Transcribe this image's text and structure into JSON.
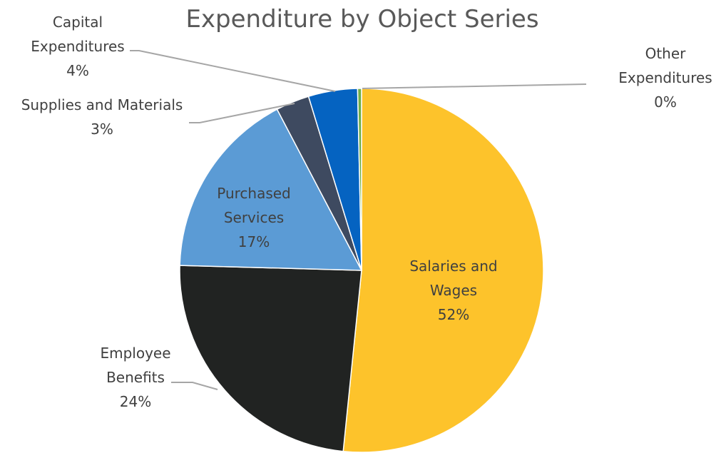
{
  "chart_data": {
    "type": "pie",
    "title": "Expenditure by Object Series",
    "slices": [
      {
        "label_lines": [
          "Salaries and",
          "Wages"
        ],
        "value_text": "52%",
        "value": 52.0,
        "color": "#FDC32B",
        "label_inside": true
      },
      {
        "label_lines": [
          "Employee",
          "Benefits"
        ],
        "value_text": "24%",
        "value": 24.0,
        "color": "#212322",
        "label_inside": false
      },
      {
        "label_lines": [
          "Purchased",
          "Services"
        ],
        "value_text": "17%",
        "value": 17.0,
        "color": "#5B9BD5",
        "label_inside": true
      },
      {
        "label_lines": [
          "Supplies and Materials"
        ],
        "value_text": "3%",
        "value": 3.0,
        "color": "#3E4A60",
        "label_inside": false
      },
      {
        "label_lines": [
          "Capital",
          "Expenditures"
        ],
        "value_text": "4%",
        "value": 4.4,
        "color": "#0563C1",
        "label_inside": false
      },
      {
        "label_lines": [
          "Other",
          "Expenditures"
        ],
        "value_text": "0%",
        "value": 0.35,
        "color": "#70AD47",
        "label_inside": false
      }
    ]
  }
}
